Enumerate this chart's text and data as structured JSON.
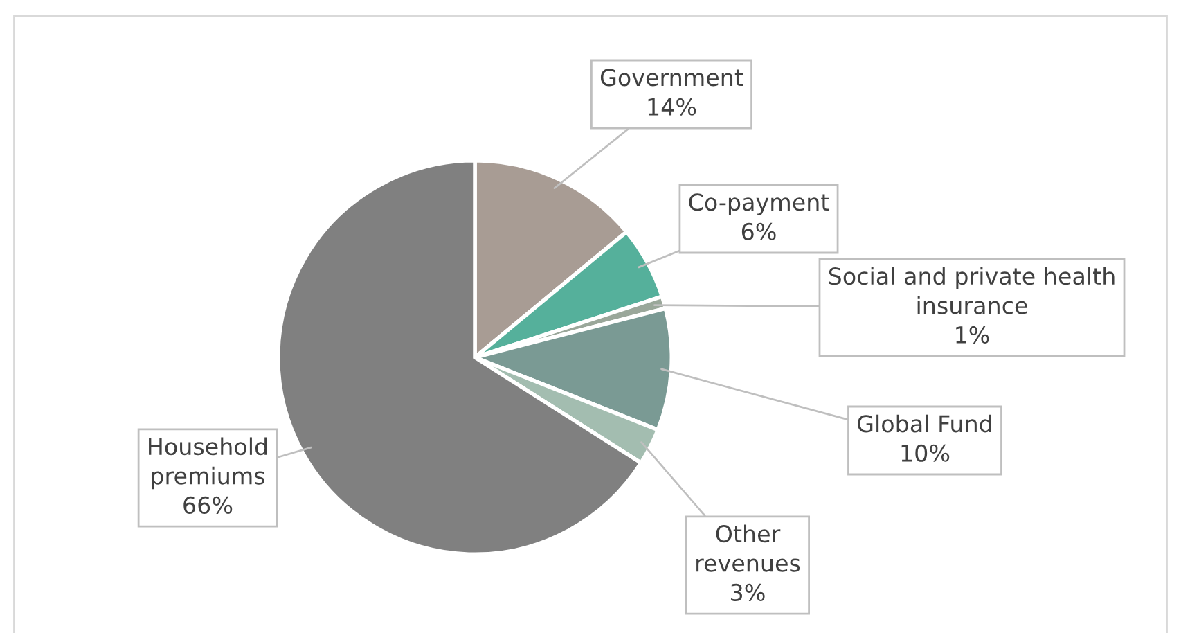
{
  "chart_data": {
    "type": "pie",
    "categories": [
      "Government",
      "Co-payment",
      "Social and private health\ninsurance",
      "Global Fund",
      "Other\nrevenues",
      "Household\npremiums"
    ],
    "values": [
      14,
      6,
      1,
      10,
      3,
      66
    ],
    "value_labels": [
      "14%",
      "6%",
      "1%",
      "10%",
      "3%",
      "66%"
    ],
    "colors": [
      "#a89c94",
      "#55b09b",
      "#9aa79a",
      "#7a9a94",
      "#a3bdb0",
      "#808080"
    ]
  }
}
